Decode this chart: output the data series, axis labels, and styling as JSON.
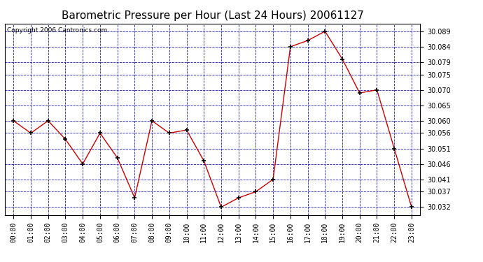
{
  "title": "Barometric Pressure per Hour (Last 24 Hours) 20061127",
  "copyright": "Copyright 2006 Cantronics.com",
  "hours": [
    "00:00",
    "01:00",
    "02:00",
    "03:00",
    "04:00",
    "05:00",
    "06:00",
    "07:00",
    "08:00",
    "09:00",
    "10:00",
    "11:00",
    "12:00",
    "13:00",
    "14:00",
    "15:00",
    "16:00",
    "17:00",
    "18:00",
    "19:00",
    "20:00",
    "21:00",
    "22:00",
    "23:00"
  ],
  "values": [
    30.06,
    30.056,
    30.06,
    30.054,
    30.046,
    30.056,
    30.048,
    30.035,
    30.06,
    30.056,
    30.057,
    30.047,
    30.032,
    30.035,
    30.037,
    30.041,
    30.084,
    30.086,
    30.089,
    30.08,
    30.069,
    30.07,
    30.051,
    30.032
  ],
  "line_color": "#cc0000",
  "marker_color": "#000000",
  "marker": "+",
  "grid_color": "#0000bb",
  "background_color": "#ffffff",
  "plot_bg_color": "#ffffff",
  "yticks": [
    30.032,
    30.037,
    30.041,
    30.046,
    30.051,
    30.056,
    30.06,
    30.065,
    30.07,
    30.075,
    30.079,
    30.084,
    30.089
  ],
  "ylim": [
    30.0295,
    30.0915
  ],
  "title_fontsize": 11,
  "tick_fontsize": 7,
  "copyright_fontsize": 6.5
}
